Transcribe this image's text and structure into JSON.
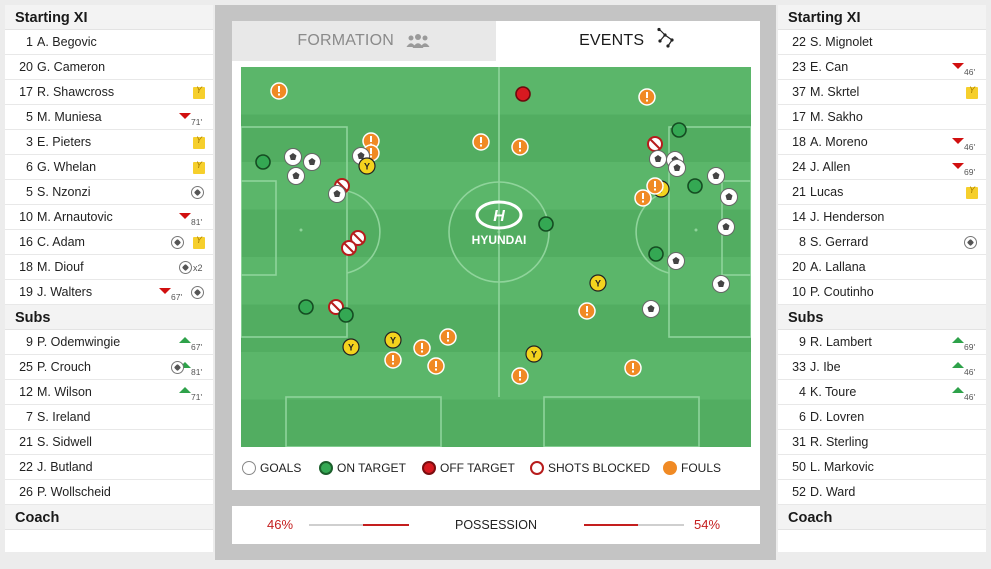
{
  "home": {
    "starting_title": "Starting XI",
    "starting": [
      {
        "num": "1",
        "name": "A. Begovic",
        "events": []
      },
      {
        "num": "20",
        "name": "G. Cameron",
        "events": []
      },
      {
        "num": "17",
        "name": "R. Shawcross",
        "events": [
          {
            "type": "yellow-card"
          }
        ]
      },
      {
        "num": "5",
        "name": "M. Muniesa",
        "events": [
          {
            "type": "sub-off",
            "minute": "71'"
          }
        ]
      },
      {
        "num": "3",
        "name": "E. Pieters",
        "events": [
          {
            "type": "yellow-card"
          }
        ]
      },
      {
        "num": "6",
        "name": "G. Whelan",
        "events": [
          {
            "type": "yellow-card"
          }
        ]
      },
      {
        "num": "5",
        "name": "S. Nzonzi",
        "events": [
          {
            "type": "goal"
          }
        ]
      },
      {
        "num": "10",
        "name": "M. Arnautovic",
        "events": [
          {
            "type": "sub-off",
            "minute": "81'"
          }
        ]
      },
      {
        "num": "16",
        "name": "C. Adam",
        "events": [
          {
            "type": "yellow-card"
          },
          {
            "type": "goal"
          }
        ]
      },
      {
        "num": "18",
        "name": "M. Diouf",
        "events": [
          {
            "type": "goal",
            "count": "x2"
          }
        ]
      },
      {
        "num": "19",
        "name": "J. Walters",
        "events": [
          {
            "type": "goal"
          },
          {
            "type": "sub-off",
            "minute": "67'"
          }
        ]
      }
    ],
    "subs_title": "Subs",
    "subs": [
      {
        "num": "9",
        "name": "P. Odemwingie",
        "events": [
          {
            "type": "sub-on",
            "minute": "67'"
          }
        ]
      },
      {
        "num": "25",
        "name": "P. Crouch",
        "events": [
          {
            "type": "sub-on",
            "minute": "81'"
          },
          {
            "type": "goal"
          }
        ]
      },
      {
        "num": "12",
        "name": "M. Wilson",
        "events": [
          {
            "type": "sub-on",
            "minute": "71'"
          }
        ]
      },
      {
        "num": "7",
        "name": "S. Ireland",
        "events": []
      },
      {
        "num": "21",
        "name": "S. Sidwell",
        "events": []
      },
      {
        "num": "22",
        "name": "J. Butland",
        "events": []
      },
      {
        "num": "26",
        "name": "P. Wollscheid",
        "events": []
      }
    ],
    "coach_title": "Coach"
  },
  "away": {
    "starting_title": "Starting XI",
    "starting": [
      {
        "num": "22",
        "name": "S. Mignolet",
        "events": []
      },
      {
        "num": "23",
        "name": "E. Can",
        "events": [
          {
            "type": "sub-off",
            "minute": "46'"
          }
        ]
      },
      {
        "num": "37",
        "name": "M. Skrtel",
        "events": [
          {
            "type": "yellow-card"
          }
        ]
      },
      {
        "num": "17",
        "name": "M. Sakho",
        "events": []
      },
      {
        "num": "18",
        "name": "A. Moreno",
        "events": [
          {
            "type": "sub-off",
            "minute": "46'"
          }
        ]
      },
      {
        "num": "24",
        "name": "J. Allen",
        "events": [
          {
            "type": "sub-off",
            "minute": "69'"
          }
        ]
      },
      {
        "num": "21",
        "name": "Lucas",
        "events": [
          {
            "type": "yellow-card"
          }
        ]
      },
      {
        "num": "14",
        "name": "J. Henderson",
        "events": []
      },
      {
        "num": "8",
        "name": "S. Gerrard",
        "events": [
          {
            "type": "goal"
          }
        ]
      },
      {
        "num": "20",
        "name": "A. Lallana",
        "events": []
      },
      {
        "num": "10",
        "name": "P. Coutinho",
        "events": []
      }
    ],
    "subs_title": "Subs",
    "subs": [
      {
        "num": "9",
        "name": "R. Lambert",
        "events": [
          {
            "type": "sub-on",
            "minute": "69'"
          }
        ]
      },
      {
        "num": "33",
        "name": "J. Ibe",
        "events": [
          {
            "type": "sub-on",
            "minute": "46'"
          }
        ]
      },
      {
        "num": "4",
        "name": "K. Toure",
        "events": [
          {
            "type": "sub-on",
            "minute": "46'"
          }
        ]
      },
      {
        "num": "6",
        "name": "D. Lovren",
        "events": []
      },
      {
        "num": "31",
        "name": "R. Sterling",
        "events": []
      },
      {
        "num": "50",
        "name": "L. Markovic",
        "events": []
      },
      {
        "num": "52",
        "name": "D. Ward",
        "events": []
      }
    ],
    "coach_title": "Coach"
  },
  "tabs": {
    "formation": "FORMATION",
    "events": "EVENTS",
    "active": "events"
  },
  "pitch": {
    "sponsor_logo_text": "HYUNDAI",
    "colors": {
      "grass_light": "#5bb66a",
      "grass_dark": "#52ad61",
      "goal": "#ffffff",
      "on_target": "#34a853",
      "off_target": "#d71920",
      "shot_blocked": "#b71c1c",
      "foul": "#f08a24",
      "yellow_card": "#f4d31e"
    }
  },
  "legend": {
    "goals": "GOALS",
    "on_target": "ON TARGET",
    "off_target": "OFF TARGET",
    "shots_blocked": "SHOTS BLOCKED",
    "fouls": "FOULS"
  },
  "possession": {
    "label": "POSSESSION",
    "home_pct_text": "46%",
    "away_pct_text": "54%",
    "home_value": 0.46,
    "away_value": 0.54
  }
}
